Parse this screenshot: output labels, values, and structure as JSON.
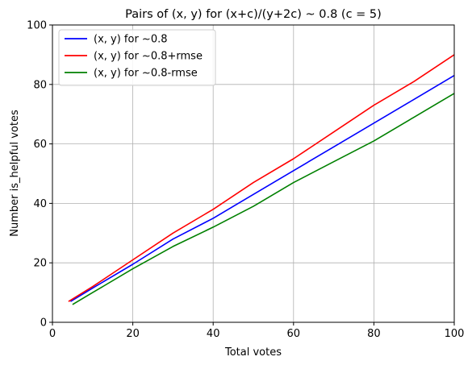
{
  "chart_data": {
    "type": "line",
    "title": "Pairs of (x, y) for (x+c)/(y+2c) ~ 0.8 (c = 5)",
    "xlabel": "Total votes",
    "ylabel": "Number is_helpful votes",
    "xlim": [
      0,
      100
    ],
    "ylim": [
      0,
      100
    ],
    "xticks": [
      0,
      20,
      40,
      60,
      80,
      100
    ],
    "yticks": [
      0,
      20,
      40,
      60,
      80,
      100
    ],
    "grid": true,
    "legend_position": "top-left",
    "series": [
      {
        "name": "(x, y) for ~0.8",
        "color": "#0000ff",
        "x": [
          4.5,
          10,
          20,
          30,
          40,
          50,
          60,
          70,
          80,
          90,
          100
        ],
        "y": [
          7,
          11.5,
          19.5,
          28,
          35,
          43,
          51,
          59,
          67,
          75,
          83
        ]
      },
      {
        "name": "(x, y) for ~0.8+rmse",
        "color": "#ff0000",
        "x": [
          4,
          10,
          20,
          30,
          40,
          50,
          60,
          70,
          80,
          90,
          100
        ],
        "y": [
          7,
          12,
          21,
          30,
          38,
          47,
          55,
          64,
          73,
          81,
          90
        ]
      },
      {
        "name": "(x, y) for ~0.8-rmse",
        "color": "#008000",
        "x": [
          5,
          10,
          20,
          30,
          40,
          50,
          60,
          70,
          80,
          90,
          100
        ],
        "y": [
          6,
          10,
          18,
          25.5,
          32,
          39,
          47,
          54,
          61,
          69,
          77
        ]
      }
    ]
  }
}
